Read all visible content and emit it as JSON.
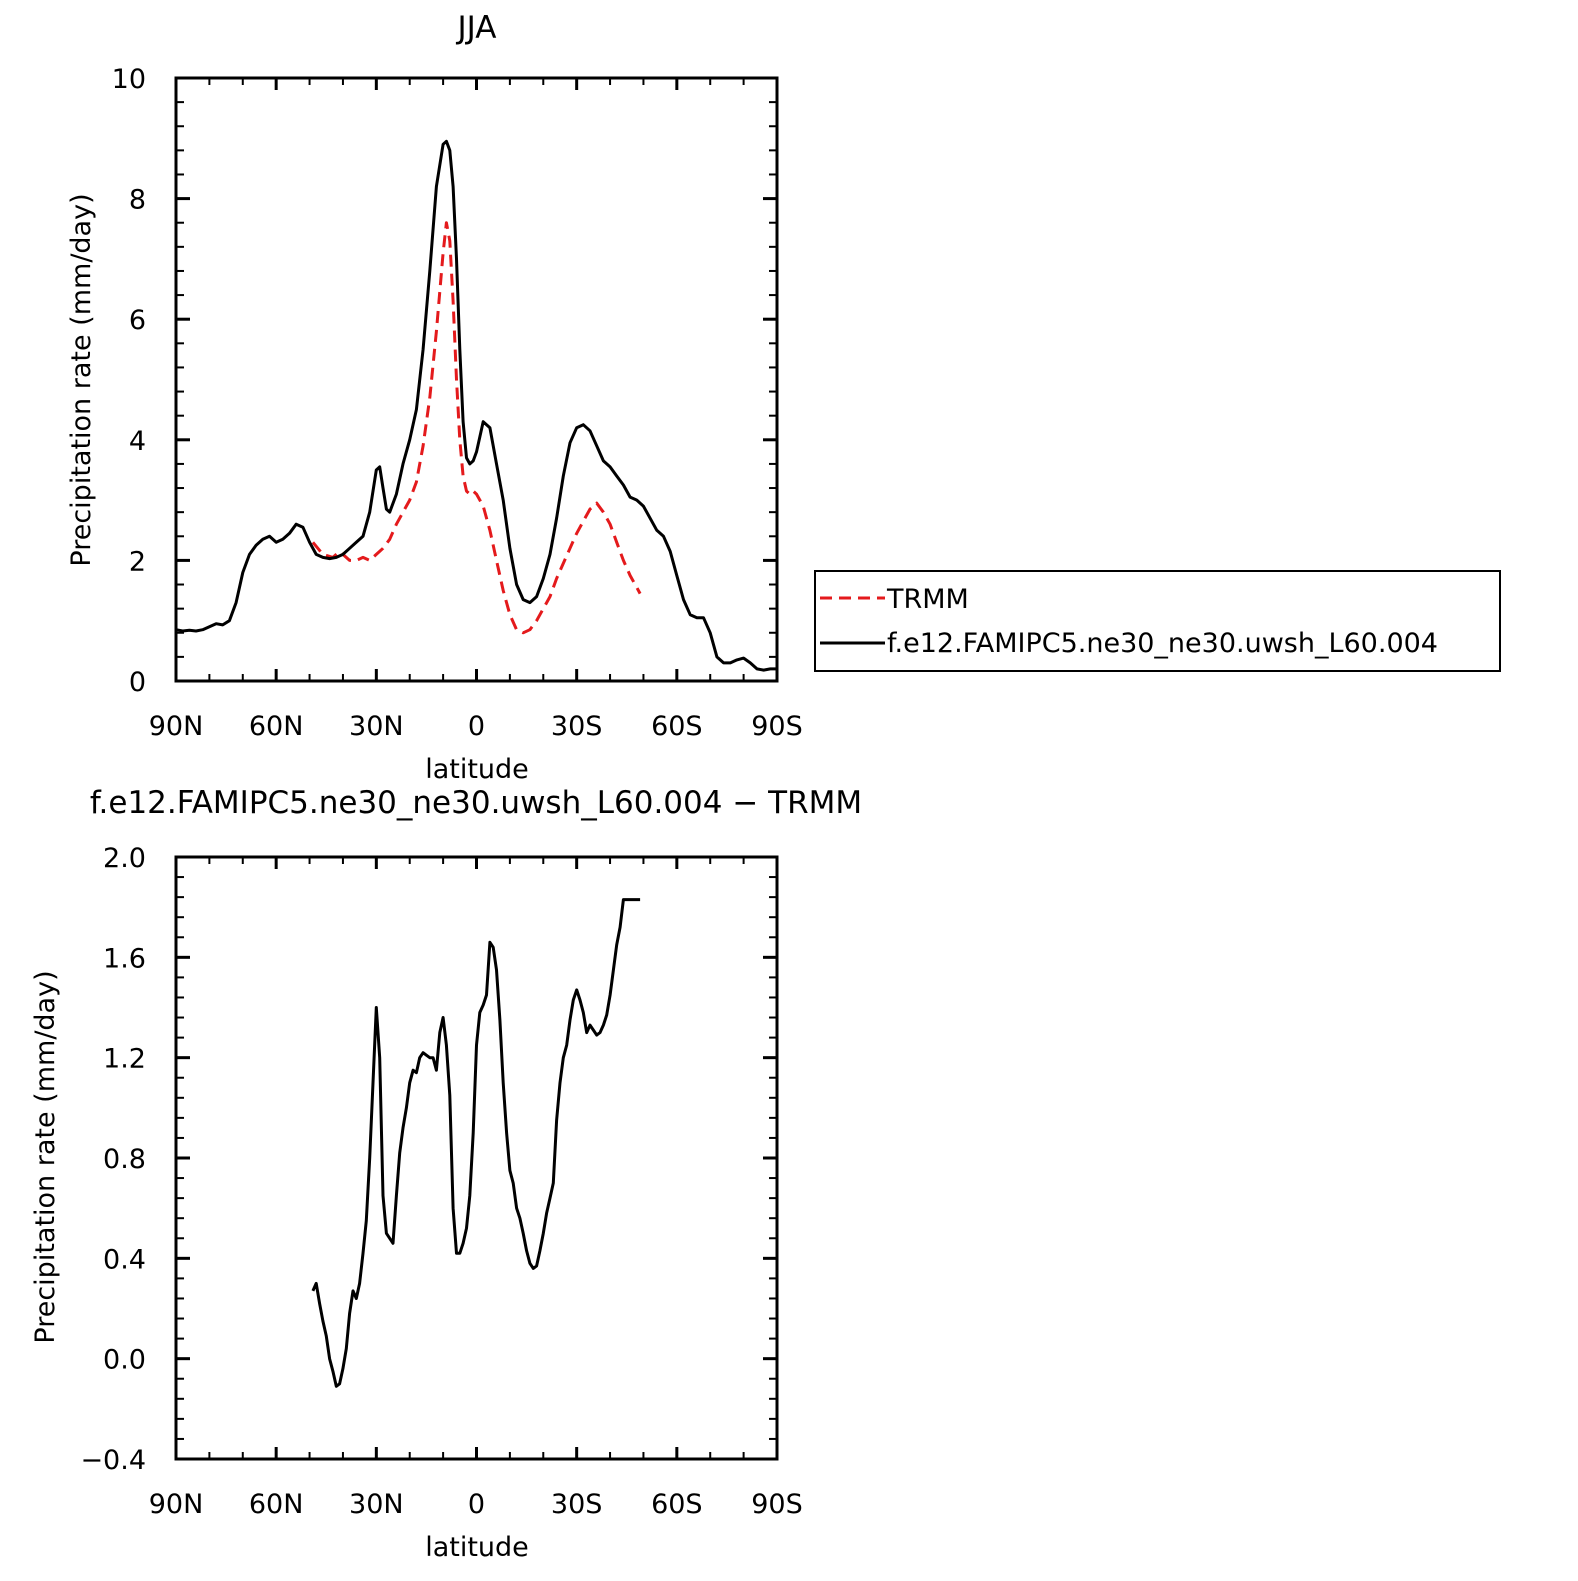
{
  "chart_data": [
    {
      "type": "line",
      "title": "JJA",
      "xlabel": "latitude",
      "ylabel": "Precipitation rate (mm/day)",
      "xlim": [
        90,
        -90
      ],
      "ylim": [
        0,
        10
      ],
      "x_tick_values": [
        90,
        60,
        30,
        0,
        -30,
        -60,
        -90
      ],
      "x_tick_labels": [
        "90N",
        "60N",
        "30N",
        "0",
        "30S",
        "60S",
        "90S"
      ],
      "y_tick_values": [
        0,
        2,
        4,
        6,
        8,
        10
      ],
      "y_tick_labels": [
        "0",
        "2",
        "4",
        "6",
        "8",
        "10"
      ],
      "grid": false,
      "legend": {
        "placement": "outside-right"
      },
      "series": [
        {
          "name": "TRMM",
          "color": "#e41a1c",
          "dash": "dashed",
          "x": [
            49,
            46,
            43,
            41,
            40,
            38,
            36,
            34,
            32,
            30,
            28,
            26,
            24,
            22,
            20,
            18,
            16,
            14,
            12,
            10,
            9,
            8,
            7,
            6,
            5,
            4,
            3,
            2,
            1,
            0,
            -2,
            -4,
            -6,
            -8,
            -10,
            -12,
            -14,
            -16,
            -18,
            -20,
            -22,
            -24,
            -26,
            -28,
            -30,
            -32,
            -34,
            -36,
            -38,
            -40,
            -42,
            -44,
            -46,
            -48,
            -49
          ],
          "values": [
            2.3,
            2.1,
            2.05,
            2.15,
            2.1,
            2.0,
            2.0,
            2.05,
            2.0,
            2.1,
            2.2,
            2.35,
            2.6,
            2.8,
            3.0,
            3.3,
            3.9,
            4.7,
            5.8,
            7.1,
            7.6,
            7.3,
            6.3,
            5.0,
            4.0,
            3.4,
            3.15,
            3.1,
            3.15,
            3.1,
            2.9,
            2.5,
            2.0,
            1.5,
            1.1,
            0.85,
            0.8,
            0.85,
            1.0,
            1.2,
            1.4,
            1.7,
            1.95,
            2.2,
            2.45,
            2.65,
            2.85,
            2.95,
            2.8,
            2.6,
            2.3,
            2.0,
            1.75,
            1.55,
            1.45
          ]
        },
        {
          "name": "f.e12.FAMIPC5.ne30_ne30.uwsh_L60.004",
          "color": "#000000",
          "dash": "solid",
          "x": [
            90,
            88,
            86,
            84,
            82,
            80,
            78,
            76,
            74,
            72,
            70,
            68,
            66,
            64,
            62,
            60,
            58,
            56,
            54,
            52,
            50,
            48,
            46,
            44,
            42,
            40,
            38,
            36,
            34,
            32,
            30,
            29,
            28,
            27,
            26,
            24,
            22,
            20,
            18,
            16,
            14,
            12,
            10,
            9,
            8,
            7,
            6,
            5,
            4,
            3,
            2,
            1,
            0,
            -2,
            -4,
            -6,
            -8,
            -10,
            -12,
            -14,
            -16,
            -18,
            -20,
            -22,
            -24,
            -26,
            -28,
            -30,
            -32,
            -34,
            -36,
            -38,
            -40,
            -42,
            -44,
            -46,
            -48,
            -50,
            -52,
            -54,
            -56,
            -58,
            -60,
            -62,
            -64,
            -66,
            -68,
            -70,
            -72,
            -74,
            -76,
            -78,
            -80,
            -82,
            -84,
            -86,
            -88,
            -90
          ],
          "values": [
            0.85,
            0.83,
            0.84,
            0.83,
            0.85,
            0.9,
            0.95,
            0.93,
            1.0,
            1.3,
            1.8,
            2.1,
            2.25,
            2.35,
            2.4,
            2.3,
            2.35,
            2.45,
            2.6,
            2.55,
            2.3,
            2.1,
            2.05,
            2.03,
            2.05,
            2.1,
            2.2,
            2.3,
            2.4,
            2.8,
            3.5,
            3.55,
            3.2,
            2.85,
            2.8,
            3.1,
            3.6,
            4.0,
            4.5,
            5.5,
            6.8,
            8.2,
            8.9,
            8.95,
            8.8,
            8.2,
            7.0,
            5.5,
            4.3,
            3.7,
            3.6,
            3.65,
            3.8,
            4.3,
            4.2,
            3.6,
            3.0,
            2.2,
            1.6,
            1.35,
            1.3,
            1.4,
            1.7,
            2.1,
            2.7,
            3.4,
            3.95,
            4.2,
            4.25,
            4.15,
            3.9,
            3.65,
            3.55,
            3.4,
            3.25,
            3.05,
            3.0,
            2.9,
            2.7,
            2.5,
            2.4,
            2.15,
            1.75,
            1.35,
            1.1,
            1.05,
            1.05,
            0.8,
            0.4,
            0.3,
            0.3,
            0.35,
            0.38,
            0.3,
            0.2,
            0.18,
            0.2,
            0.2
          ]
        }
      ]
    },
    {
      "type": "line",
      "title": "f.e12.FAMIPC5.ne30_ne30.uwsh_L60.004 − TRMM",
      "xlabel": "latitude",
      "ylabel": "Precipitation rate (mm/day)",
      "xlim": [
        90,
        -90
      ],
      "ylim": [
        -0.4,
        2.0
      ],
      "x_tick_values": [
        90,
        60,
        30,
        0,
        -30,
        -60,
        -90
      ],
      "x_tick_labels": [
        "90N",
        "60N",
        "30N",
        "0",
        "30S",
        "60S",
        "90S"
      ],
      "y_tick_values": [
        -0.4,
        0.0,
        0.4,
        0.8,
        1.2,
        1.6,
        2.0
      ],
      "y_tick_labels": [
        "−0.4",
        "0.0",
        "0.4",
        "0.8",
        "1.2",
        "1.6",
        "2.0"
      ],
      "grid": false,
      "series": [
        {
          "color": "#000000",
          "dash": "solid",
          "x": [
            49,
            48,
            47,
            46,
            45,
            44,
            43,
            42,
            41,
            40,
            39,
            38,
            37,
            36,
            35,
            34,
            33,
            32,
            31,
            30,
            29,
            28,
            27,
            26,
            25,
            24,
            23,
            22,
            21,
            20,
            19,
            18,
            17,
            16,
            15,
            14,
            13,
            12,
            11,
            10,
            9,
            8,
            7,
            6,
            5,
            4,
            3,
            2,
            1,
            0,
            -1,
            -2,
            -3,
            -4,
            -5,
            -6,
            -7,
            -8,
            -9,
            -10,
            -11,
            -12,
            -13,
            -14,
            -15,
            -16,
            -17,
            -18,
            -19,
            -20,
            -21,
            -22,
            -23,
            -24,
            -25,
            -26,
            -27,
            -28,
            -29,
            -30,
            -31,
            -32,
            -33,
            -34,
            -35,
            -36,
            -37,
            -38,
            -39,
            -40,
            -41,
            -42,
            -43,
            -44,
            -45,
            -46,
            -47,
            -48,
            -49
          ],
          "values": [
            0.27,
            0.3,
            0.22,
            0.15,
            0.09,
            0.0,
            -0.05,
            -0.11,
            -0.1,
            -0.04,
            0.04,
            0.18,
            0.27,
            0.24,
            0.3,
            0.42,
            0.55,
            0.8,
            1.1,
            1.4,
            1.2,
            0.65,
            0.5,
            0.48,
            0.46,
            0.65,
            0.82,
            0.92,
            1.0,
            1.1,
            1.15,
            1.14,
            1.2,
            1.22,
            1.21,
            1.2,
            1.2,
            1.15,
            1.3,
            1.36,
            1.25,
            1.05,
            0.6,
            0.42,
            0.42,
            0.46,
            0.52,
            0.65,
            0.9,
            1.25,
            1.38,
            1.41,
            1.45,
            1.66,
            1.64,
            1.55,
            1.35,
            1.1,
            0.9,
            0.75,
            0.7,
            0.6,
            0.56,
            0.5,
            0.43,
            0.38,
            0.36,
            0.37,
            0.43,
            0.5,
            0.58,
            0.64,
            0.7,
            0.95,
            1.1,
            1.2,
            1.25,
            1.35,
            1.43,
            1.47,
            1.43,
            1.38,
            1.3,
            1.33,
            1.31,
            1.29,
            1.3,
            1.33,
            1.37,
            1.45,
            1.55,
            1.65,
            1.72,
            1.83,
            1.83,
            1.83,
            1.83,
            1.83,
            1.83
          ]
        }
      ]
    }
  ]
}
